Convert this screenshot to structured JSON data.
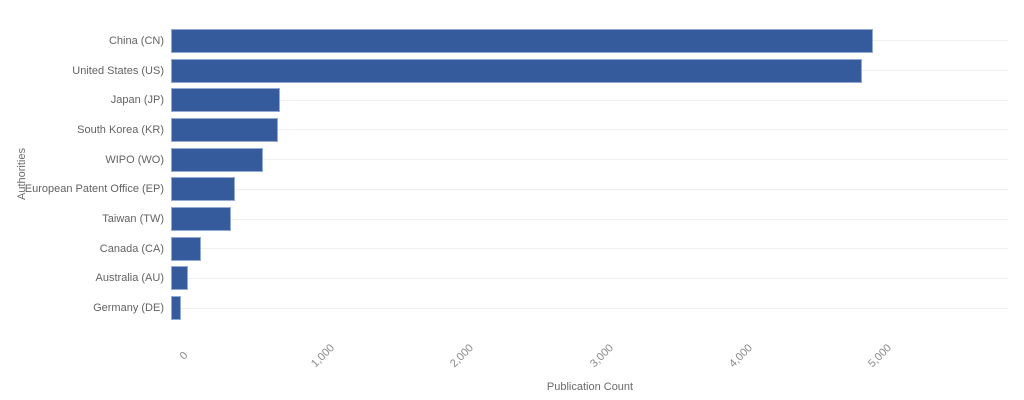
{
  "chart_data": {
    "type": "bar",
    "orientation": "horizontal",
    "title": "",
    "xlabel": "Publication Count",
    "ylabel": "Authorities",
    "categories": [
      "China (CN)",
      "United States (US)",
      "Japan (JP)",
      "South Korea (KR)",
      "WIPO (WO)",
      "European Patent Office (EP)",
      "Taiwan (TW)",
      "Canada (CA)",
      "Australia (AU)",
      "Germany (DE)"
    ],
    "values": [
      5030,
      4950,
      775,
      760,
      650,
      455,
      420,
      205,
      115,
      65
    ],
    "xlim": [
      0,
      6000
    ],
    "xticks": [
      0,
      1000,
      2000,
      3000,
      4000,
      5000
    ],
    "xtick_labels": [
      "0",
      "1,000",
      "2,000",
      "3,000",
      "4,000",
      "5,000"
    ],
    "legend": "none",
    "grid": "per-category horizontal lines, light gray",
    "colors": {
      "bar_fill": "#355b9d",
      "bar_border": "#93aad3",
      "gridline": "#efefef",
      "category_label": "#636363",
      "tick_label": "#8a8a8a",
      "axis_title": "#6b6b6b",
      "background": "#ffffff"
    }
  }
}
